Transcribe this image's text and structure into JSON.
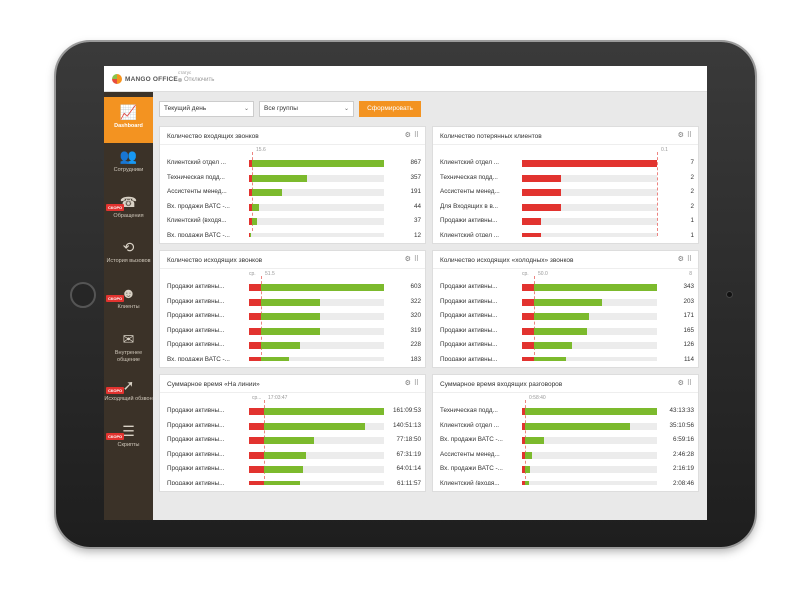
{
  "app": {
    "logo_text": "MANGO OFFICE",
    "status_label": "статус",
    "status_value": "Отключить"
  },
  "sidebar": {
    "soon_label": "СКОРО",
    "items": [
      {
        "label": "Dashboard",
        "icon": "chart-icon",
        "active": true
      },
      {
        "label": "Сотрудники",
        "icon": "people-icon"
      },
      {
        "label": "Обращения",
        "icon": "calls-icon",
        "soon": true
      },
      {
        "label": "История вызовов",
        "icon": "history-icon"
      },
      {
        "label": "Клиенты",
        "icon": "clients-icon",
        "soon": true
      },
      {
        "label": "Внутренее общение",
        "icon": "chat-icon"
      },
      {
        "label": "Исходящий обзвон",
        "icon": "outgoing-icon",
        "soon": true
      },
      {
        "label": "Скрипты",
        "icon": "script-icon",
        "soon": true
      }
    ]
  },
  "filters": {
    "period": "Текущий день",
    "groups": "Все группы",
    "submit": "Сформировать"
  },
  "colors": {
    "accent": "#f39321",
    "red": "#e2332f",
    "green": "#7cba2d",
    "sidebar": "#3b3228"
  },
  "panels": [
    {
      "title": "Количество входящих звонков",
      "ref": "15.6",
      "rows": [
        {
          "label": "Клиентский отдел ...",
          "value": "867",
          "red": 0.02,
          "green": 0.98
        },
        {
          "label": "Техническая подд...",
          "value": "357",
          "red": 0.02,
          "green": 0.41
        },
        {
          "label": "Ассистенты менед...",
          "value": "191",
          "red": 0.02,
          "green": 0.22
        },
        {
          "label": "Вх. продажи ВАТС -...",
          "value": "44",
          "red": 0.02,
          "green": 0.05
        },
        {
          "label": "Клиентский (входя...",
          "value": "37",
          "red": 0.02,
          "green": 0.04
        },
        {
          "label": "Вх. продажи ВАТС -...",
          "value": "12",
          "red": 0.01,
          "green": 0.01
        }
      ]
    },
    {
      "title": "Количество потерянных клиентов",
      "ref": "0.1",
      "rows": [
        {
          "label": "Клиентский отдел ...",
          "value": "7",
          "red": 1.0,
          "green": 0
        },
        {
          "label": "Техническая подд...",
          "value": "2",
          "red": 0.29,
          "green": 0
        },
        {
          "label": "Ассистенты менед...",
          "value": "2",
          "red": 0.29,
          "green": 0
        },
        {
          "label": "Для Входящих в в...",
          "value": "2",
          "red": 0.29,
          "green": 0
        },
        {
          "label": "Продажи активны...",
          "value": "1",
          "red": 0.14,
          "green": 0
        },
        {
          "label": "Клиентский отдел ...",
          "value": "1",
          "red": 0.14,
          "green": 0
        }
      ]
    },
    {
      "title": "Количество исходящих звонков",
      "ref": "51.5",
      "ref_prefix": "ср.",
      "rows": [
        {
          "label": "Продажи активны...",
          "value": "603",
          "red": 0.09,
          "green": 0.91
        },
        {
          "label": "Продажи активны...",
          "value": "322",
          "red": 0.09,
          "green": 0.44
        },
        {
          "label": "Продажи активны...",
          "value": "320",
          "red": 0.09,
          "green": 0.44
        },
        {
          "label": "Продажи активны...",
          "value": "319",
          "red": 0.09,
          "green": 0.44
        },
        {
          "label": "Продажи активны...",
          "value": "228",
          "red": 0.09,
          "green": 0.29
        },
        {
          "label": "Вх. продажи ВАТС -...",
          "value": "183",
          "red": 0.09,
          "green": 0.21
        }
      ]
    },
    {
      "title": "Количество исходящих «холодных» звонков",
      "ref": "50.0",
      "ref_prefix": "ср.",
      "scroll": "8",
      "rows": [
        {
          "label": "Продажи активны...",
          "value": "343",
          "red": 0.09,
          "green": 0.91
        },
        {
          "label": "Продажи активны...",
          "value": "203",
          "red": 0.09,
          "green": 0.5
        },
        {
          "label": "Продажи активны...",
          "value": "171",
          "red": 0.09,
          "green": 0.41
        },
        {
          "label": "Продажи активны...",
          "value": "165",
          "red": 0.09,
          "green": 0.39
        },
        {
          "label": "Продажи активны...",
          "value": "126",
          "red": 0.09,
          "green": 0.28
        },
        {
          "label": "Продажи активны...",
          "value": "114",
          "red": 0.09,
          "green": 0.24
        }
      ]
    },
    {
      "title": "Суммарное время «На линии»",
      "ref": "17:03:47",
      "ref_prefix": "ср...",
      "rows": [
        {
          "label": "Продажи активны...",
          "value": "161:09:53",
          "red": 0.11,
          "green": 0.89
        },
        {
          "label": "Продажи активны...",
          "value": "140:51:13",
          "red": 0.11,
          "green": 0.75
        },
        {
          "label": "Продажи активны...",
          "value": "77:18:50",
          "red": 0.11,
          "green": 0.37
        },
        {
          "label": "Продажи активны...",
          "value": "67:31:19",
          "red": 0.11,
          "green": 0.31
        },
        {
          "label": "Продажи активны...",
          "value": "64:01:14",
          "red": 0.11,
          "green": 0.29
        },
        {
          "label": "Продажи активны...",
          "value": "61:11:57",
          "red": 0.11,
          "green": 0.27
        }
      ]
    },
    {
      "title": "Суммарное время входящих разговоров",
      "ref": "0:58:40",
      "rows": [
        {
          "label": "Техническая подд...",
          "value": "43:13:33",
          "red": 0.02,
          "green": 0.98
        },
        {
          "label": "Клиентский отдел ...",
          "value": "35:10:56",
          "red": 0.02,
          "green": 0.78
        },
        {
          "label": "Вх. продажи ВАТС -...",
          "value": "6:59:16",
          "red": 0.02,
          "green": 0.14
        },
        {
          "label": "Ассистенты менед...",
          "value": "2:46:28",
          "red": 0.02,
          "green": 0.05
        },
        {
          "label": "Вх. продажи ВАТС -...",
          "value": "2:16:19",
          "red": 0.02,
          "green": 0.04
        },
        {
          "label": "Клиентский (входя...",
          "value": "2:08:46",
          "red": 0.02,
          "green": 0.03
        }
      ]
    }
  ]
}
